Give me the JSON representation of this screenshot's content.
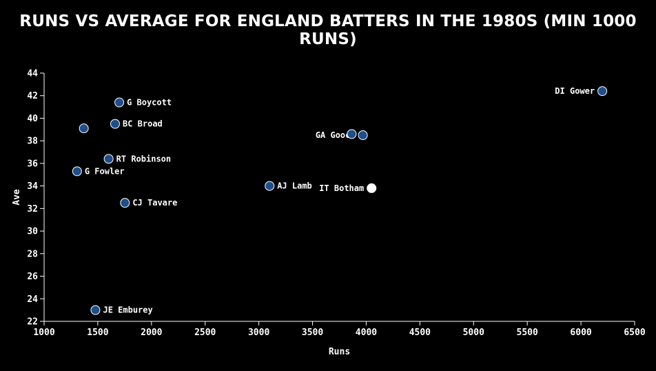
{
  "chart_data": {
    "type": "scatter",
    "title": "RUNS VS AVERAGE FOR ENGLAND BATTERS IN THE 1980S (MIN 1000 RUNS)",
    "xlabel": "Runs",
    "ylabel": "Ave",
    "xlim": [
      1000,
      6500
    ],
    "ylim": [
      22,
      44
    ],
    "x_ticks": [
      "1000",
      "1500",
      "2000",
      "2500",
      "3000",
      "3500",
      "4000",
      "4500",
      "5000",
      "5500",
      "6000",
      "6500"
    ],
    "y_ticks": [
      "22",
      "24",
      "26",
      "28",
      "30",
      "32",
      "34",
      "36",
      "38",
      "40",
      "42",
      "44"
    ],
    "grid": false,
    "colors": {
      "point_fill": "#1f4e8c",
      "point_stroke": "#ffffff",
      "highlight_fill": "#ffffff",
      "background": "#000000",
      "text": "#ffffff"
    },
    "points": [
      {
        "label": "DI Gower",
        "x": 6199,
        "y": 42.4,
        "label_side": "left",
        "highlight": false
      },
      {
        "label": "G Boycott",
        "x": 1700,
        "y": 41.4,
        "label_side": "right",
        "highlight": false
      },
      {
        "label": "BC Broad",
        "x": 1661,
        "y": 39.5,
        "label_side": "right",
        "highlight": false
      },
      {
        "label": "",
        "x": 1370,
        "y": 39.1,
        "label_side": "right",
        "highlight": false
      },
      {
        "label": "GA Gooch",
        "x": 3969,
        "y": 38.5,
        "label_side": "left",
        "highlight": false
      },
      {
        "label": "",
        "x": 3865,
        "y": 38.6,
        "label_side": "right",
        "highlight": false
      },
      {
        "label": "RT Robinson",
        "x": 1601,
        "y": 36.4,
        "label_side": "right",
        "highlight": false
      },
      {
        "label": "G Fowler",
        "x": 1307,
        "y": 35.3,
        "label_side": "right",
        "highlight": false
      },
      {
        "label": "AJ Lamb",
        "x": 3100,
        "y": 34.0,
        "label_side": "right",
        "highlight": false
      },
      {
        "label": "IT Botham",
        "x": 4050,
        "y": 33.8,
        "label_side": "left",
        "highlight": true
      },
      {
        "label": "CJ Tavare",
        "x": 1753,
        "y": 32.5,
        "label_side": "right",
        "highlight": false
      },
      {
        "label": "JE Emburey",
        "x": 1478,
        "y": 23.0,
        "label_side": "right",
        "highlight": false
      }
    ]
  }
}
